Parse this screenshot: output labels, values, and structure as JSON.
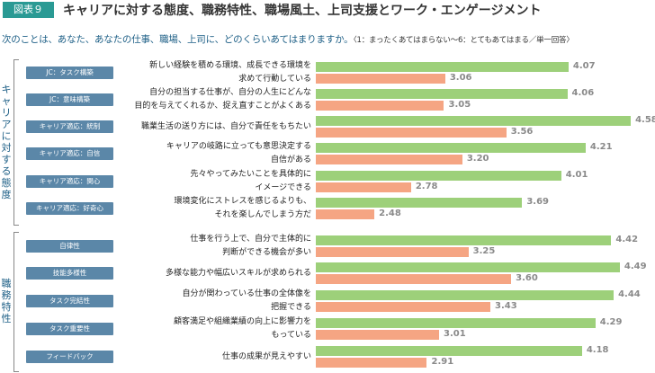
{
  "header": {
    "figure_label": "図表９",
    "title": "キャリアに対する態度、職務特性、職場風土、上司支援とワーク・エンゲージメント"
  },
  "question": {
    "text": "次のことは、あなた、あなたの仕事、職場、上司に、どのくらいあてはまりますか。",
    "note": "〈1：まったくあてはまらない～6：とてもあてはまる／単一回答〉"
  },
  "chart_data": {
    "type": "bar",
    "orientation": "horizontal",
    "xlim": [
      2,
      4.6
    ],
    "grid": false,
    "colors": {
      "series1": "#9dd07a",
      "series2": "#f5a583",
      "tag": "#5b87a8"
    },
    "groups": [
      {
        "label": "キャリアに対する態度",
        "items": [
          {
            "tag": "JC：タスク構築",
            "desc": [
              "新しい経験を積める環境、成長できる環境を",
              "求めて行動している"
            ],
            "values": [
              4.07,
              3.06
            ]
          },
          {
            "tag": "JC：意味構築",
            "desc": [
              "自分の担当する仕事が、自分の人生にどんな",
              "目的を与えてくれるか、捉え直すことがよくある"
            ],
            "values": [
              4.06,
              3.05
            ]
          },
          {
            "tag": "キャリア適応：統制",
            "desc": [
              "職業生活の送り方には、自分で責任をもちたい"
            ],
            "values": [
              4.58,
              3.56
            ]
          },
          {
            "tag": "キャリア適応：自信",
            "desc": [
              "キャリアの岐路に立っても意思決定する",
              "自信がある"
            ],
            "values": [
              4.21,
              3.2
            ]
          },
          {
            "tag": "キャリア適応：関心",
            "desc": [
              "先々やってみたいことを具体的に",
              "イメージできる"
            ],
            "values": [
              4.01,
              2.78
            ]
          },
          {
            "tag": "キャリア適応：好奇心",
            "desc": [
              "環境変化にストレスを感じるよりも、",
              "それを楽しんでしまう方だ"
            ],
            "values": [
              3.69,
              2.48
            ]
          }
        ]
      },
      {
        "label": "職務特性",
        "items": [
          {
            "tag": "自律性",
            "desc": [
              "仕事を行う上で、自分で主体的に",
              "判断ができる機会が多い"
            ],
            "values": [
              4.42,
              3.25
            ]
          },
          {
            "tag": "技能多様性",
            "desc": [
              "多様な能力や幅広いスキルが求められる"
            ],
            "values": [
              4.49,
              3.6
            ]
          },
          {
            "tag": "タスク完結性",
            "desc": [
              "自分が関わっている仕事の全体像を",
              "把握できる"
            ],
            "values": [
              4.44,
              3.43
            ]
          },
          {
            "tag": "タスク重要性",
            "desc": [
              "顧客満足や組織業績の向上に影響力を",
              "もっている"
            ],
            "values": [
              4.29,
              3.01
            ]
          },
          {
            "tag": "フィードバック",
            "desc": [
              "仕事の成果が見えやすい"
            ],
            "values": [
              4.18,
              2.91
            ]
          }
        ]
      }
    ]
  }
}
